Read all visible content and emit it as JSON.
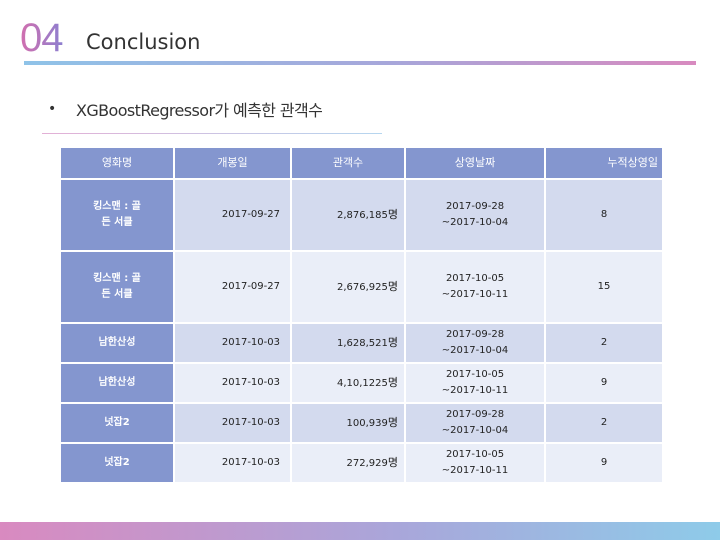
{
  "header": {
    "slide_number": "04",
    "title": "Conclusion"
  },
  "bullet": {
    "marker": "•",
    "text": "XGBoostRegressor가 예측한 관객수"
  },
  "table": {
    "headers": [
      "영화명",
      "개봉일",
      "관객수",
      "상영날짜",
      "누적상영일"
    ],
    "rows": [
      {
        "movie": "킹스맨 : 골\n든 서클",
        "open_date": "2017-09-27",
        "audience": "2,876,185",
        "unit": "명",
        "period_start": "2017-09-28",
        "period_end": "~2017-10-04",
        "days": "8"
      },
      {
        "movie": "킹스맨 : 골\n든 서클",
        "open_date": "2017-09-27",
        "audience": "2,676,925",
        "unit": "명",
        "period_start": "2017-10-05",
        "period_end": "~2017-10-11",
        "days": "15"
      },
      {
        "movie": "남한산성",
        "open_date": "2017-10-03",
        "audience": "1,628,521",
        "unit": "명",
        "period_start": "2017-09-28",
        "period_end": "~2017-10-04",
        "days": "2"
      },
      {
        "movie": "남한산성",
        "open_date": "2017-10-03",
        "audience": "4,10,1225",
        "unit": "명",
        "period_start": "2017-10-05",
        "period_end": "~2017-10-11",
        "days": "9"
      },
      {
        "movie": "넛잡2",
        "open_date": "2017-10-03",
        "audience": "100,939",
        "unit": "명",
        "period_start": "2017-09-28",
        "period_end": "~2017-10-04",
        "days": "2"
      },
      {
        "movie": "넛잡2",
        "open_date": "2017-10-03",
        "audience": "272,929",
        "unit": "명",
        "period_start": "2017-10-05",
        "period_end": "~2017-10-11",
        "days": "9"
      }
    ]
  },
  "colors": {
    "header_fill": "#8496cf",
    "row_fill_dark": "#d3daee",
    "row_fill_light": "#eaeef8"
  }
}
